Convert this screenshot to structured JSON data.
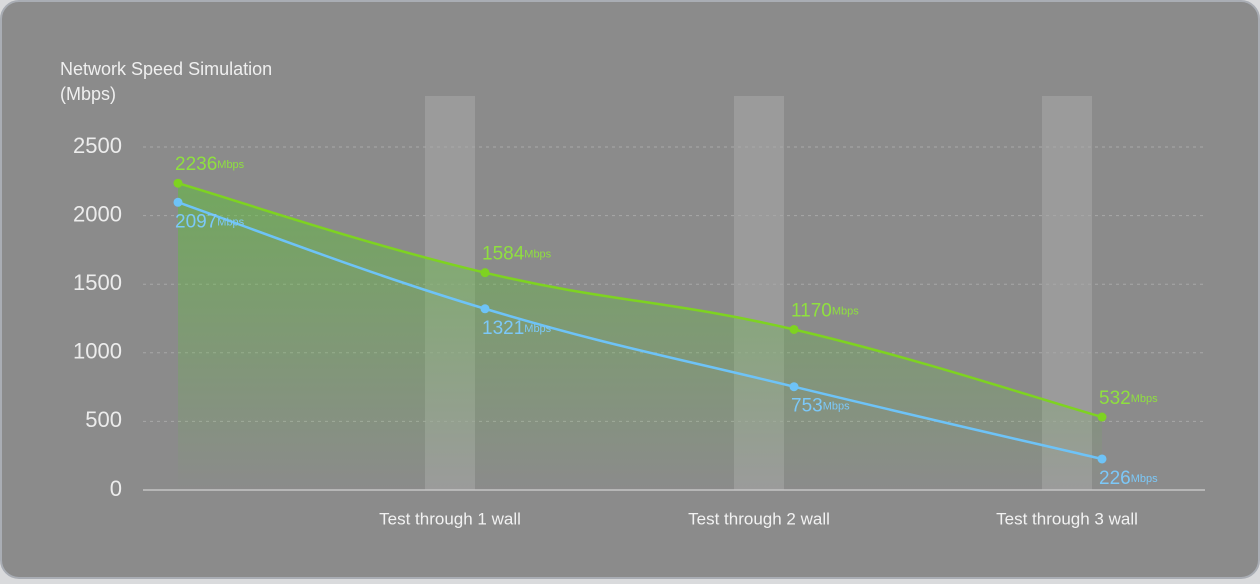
{
  "chart_data": {
    "type": "line",
    "title": "Network Speed Simulation",
    "y_label": "(Mbps)",
    "categories": [
      null,
      "Test through 1 wall",
      "Test through 2 wall",
      "Test through 3 wall"
    ],
    "value_unit": "Mbps",
    "series": [
      {
        "name": null,
        "color": "#7ed321",
        "label_color": "#8fe03f",
        "values": [
          2236,
          1584,
          1170,
          532
        ]
      },
      {
        "name": null,
        "color": "#6ec3f7",
        "label_color": "#7cc8f8",
        "values": [
          2097,
          1321,
          753,
          226
        ]
      }
    ],
    "ylim": [
      0,
      2500
    ],
    "yticks": [
      0,
      500,
      1000,
      1500,
      2000,
      2500
    ],
    "grid": true
  }
}
